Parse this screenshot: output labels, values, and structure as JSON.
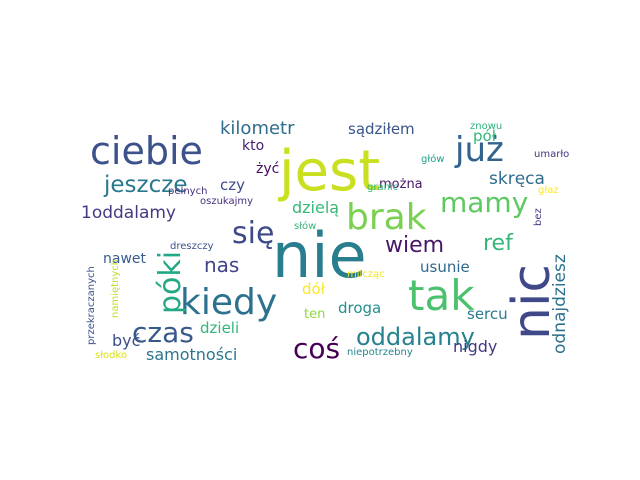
{
  "words": [
    {
      "text": "nie",
      "color": "#287d8e"
    },
    {
      "text": "jest",
      "color": "#c8e020"
    },
    {
      "text": "ciebie",
      "color": "#3b528b"
    },
    {
      "text": "nic",
      "color": "#3f4889"
    },
    {
      "text": "tak",
      "color": "#4ac16d"
    },
    {
      "text": "już",
      "color": "#33638d"
    },
    {
      "text": "kiedy",
      "color": "#2c728e"
    },
    {
      "text": "brak",
      "color": "#7ad151"
    },
    {
      "text": "mamy",
      "color": "#5ec962"
    },
    {
      "text": "jeszcze",
      "color": "#2a788e"
    },
    {
      "text": "póki",
      "color": "#22a884"
    },
    {
      "text": "się",
      "color": "#3e4989"
    },
    {
      "text": "czas",
      "color": "#375a8c"
    },
    {
      "text": "oddalamy",
      "color": "#26828e"
    },
    {
      "text": "coś",
      "color": "#440154"
    },
    {
      "text": "wiem",
      "color": "#481668"
    },
    {
      "text": "ref",
      "color": "#35b779"
    },
    {
      "text": "nas",
      "color": "#414487"
    },
    {
      "text": "kilometr",
      "color": "#2f6c8e"
    },
    {
      "text": "sądziłem",
      "color": "#3a548c"
    },
    {
      "text": "pół",
      "color": "#35b779"
    },
    {
      "text": "skręca",
      "color": "#2f6c8e"
    },
    {
      "text": "dzielą",
      "color": "#37b878"
    },
    {
      "text": "można",
      "color": "#48186a"
    },
    {
      "text": "czy",
      "color": "#3e4c8a"
    },
    {
      "text": "kto",
      "color": "#482071"
    },
    {
      "text": "żyć",
      "color": "#460b5e"
    },
    {
      "text": "1oddalamy",
      "color": "#443a83"
    },
    {
      "text": "nawet",
      "color": "#375b8d"
    },
    {
      "text": "być",
      "color": "#3c4f8a"
    },
    {
      "text": "dół",
      "color": "#fde725"
    },
    {
      "text": "droga",
      "color": "#21908d"
    },
    {
      "text": "dzieli",
      "color": "#32b67a"
    },
    {
      "text": "usunie",
      "color": "#31688e"
    },
    {
      "text": "sercu",
      "color": "#2a788e"
    },
    {
      "text": "ten",
      "color": "#8fd744"
    },
    {
      "text": "samotności",
      "color": "#2a768e"
    },
    {
      "text": "nigdy",
      "color": "#443983"
    },
    {
      "text": "odnajdziesz",
      "color": "#2c728e"
    },
    {
      "text": "pełnych",
      "color": "#46327e"
    },
    {
      "text": "oszukajmy",
      "color": "#46307e"
    },
    {
      "text": "dreszczy",
      "color": "#3b528b"
    },
    {
      "text": "przekraczanych",
      "color": "#3b528b"
    },
    {
      "text": "namiętnych",
      "color": "#bddf26"
    },
    {
      "text": "słodko",
      "color": "#d8e219"
    },
    {
      "text": "milcząc",
      "color": "#f1e51d"
    },
    {
      "text": "słów",
      "color": "#35b779"
    },
    {
      "text": "niepotrzebny",
      "color": "#24868e"
    },
    {
      "text": "głów",
      "color": "#1f9e89"
    },
    {
      "text": "granic",
      "color": "#35b779"
    },
    {
      "text": "znowu",
      "color": "#2db27d"
    },
    {
      "text": "umarło",
      "color": "#46337e"
    },
    {
      "text": "bez",
      "color": "#433e85"
    },
    {
      "text": "głaz",
      "color": "#fde725"
    }
  ]
}
